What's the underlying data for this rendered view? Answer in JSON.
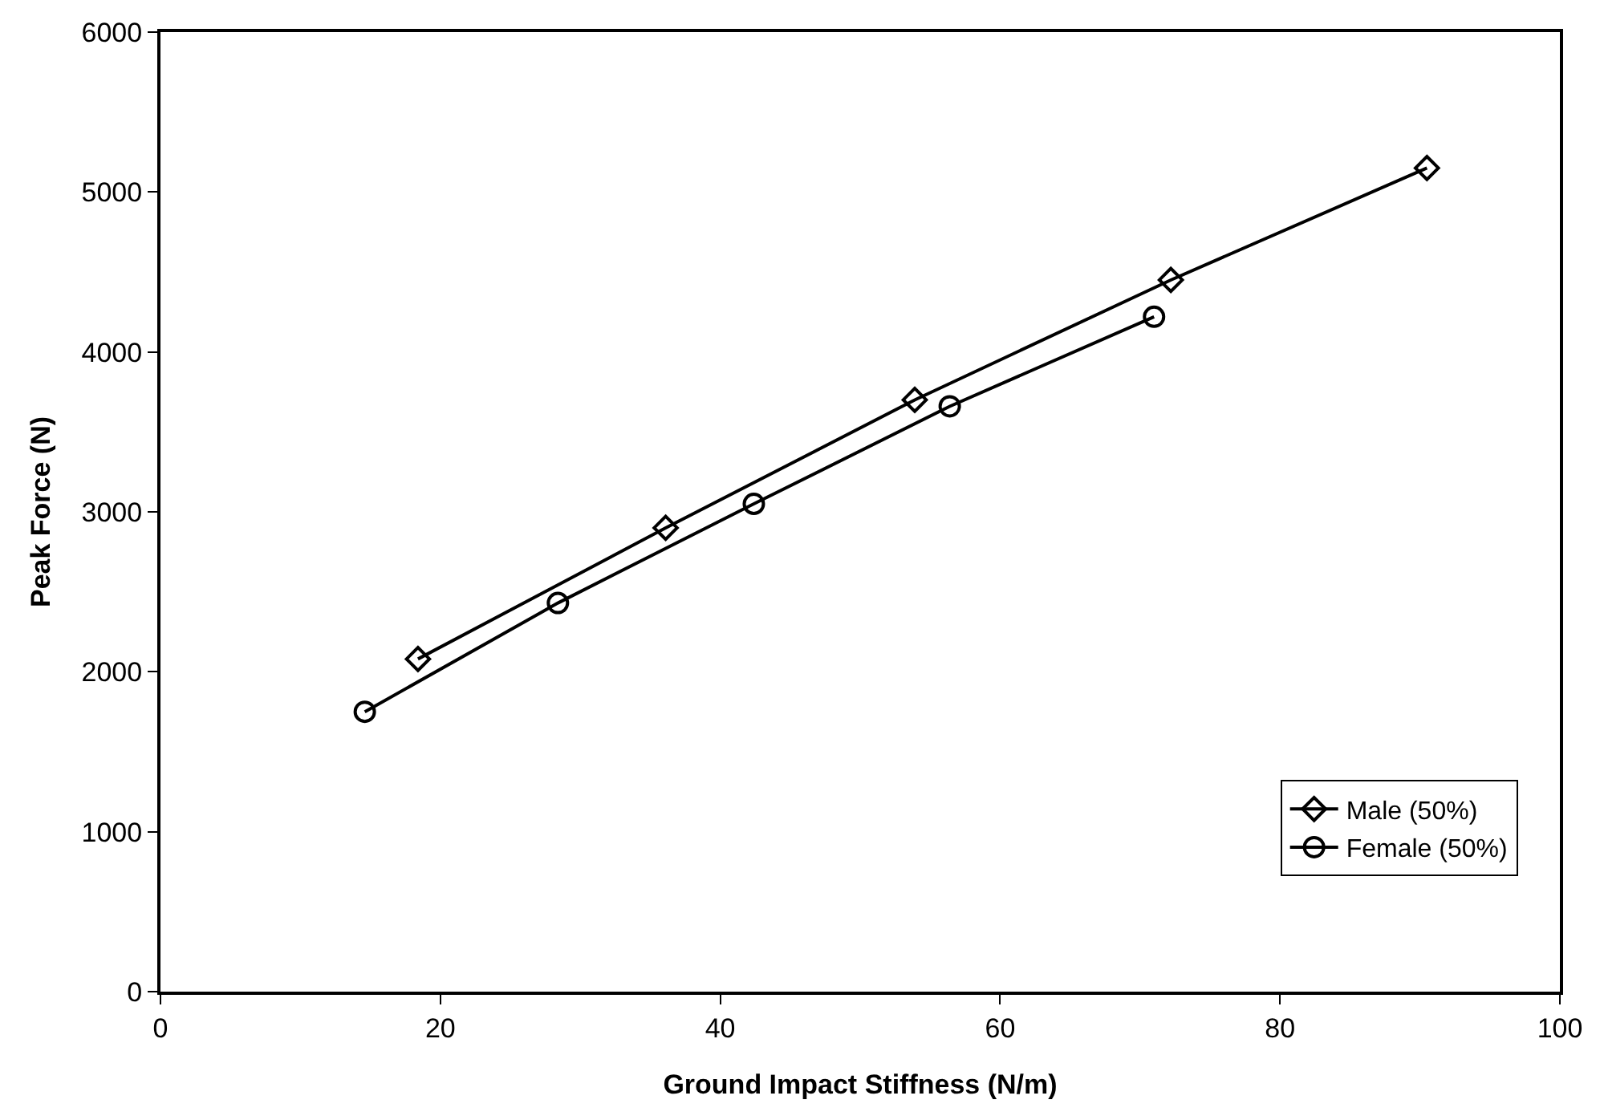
{
  "chart_data": {
    "type": "line",
    "xlabel": "Ground Impact Stiffness (N/m)",
    "ylabel": "Peak Force (N)",
    "xlim": [
      0,
      100
    ],
    "xticks": [
      0,
      20,
      40,
      60,
      80,
      100
    ],
    "ylim": [
      0,
      6000
    ],
    "yticks": [
      0,
      1000,
      2000,
      3000,
      4000,
      5000,
      6000
    ],
    "legend": "bottom right",
    "line_style": "solid",
    "series": [
      {
        "name": "Male (50%)",
        "color": "#000000",
        "marker": "diamond",
        "x": [
          18.4,
          36.1,
          53.9,
          72.2,
          90.5
        ],
        "values": [
          2080,
          2900,
          3700,
          4450,
          5150
        ]
      },
      {
        "name": "Female (50%)",
        "color": "#000000",
        "marker": "circle",
        "x": [
          14.6,
          28.4,
          42.4,
          56.4,
          71.0
        ],
        "values": [
          1750,
          2430,
          3050,
          3660,
          4220
        ]
      }
    ]
  }
}
